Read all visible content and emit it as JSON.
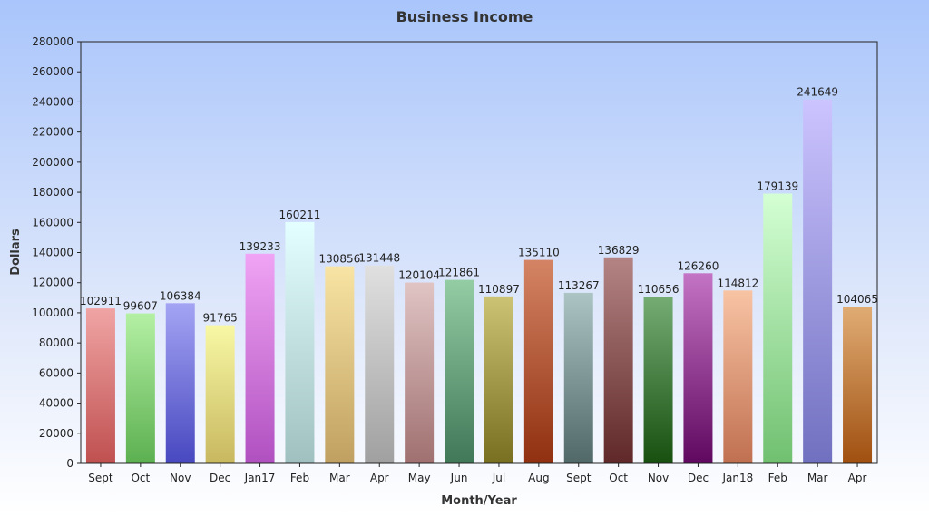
{
  "chart_data": {
    "type": "bar",
    "title": "Business Income",
    "xlabel": "Month/Year",
    "ylabel": "Dollars",
    "ylim": [
      0,
      280000
    ],
    "yticks": [
      0,
      20000,
      40000,
      60000,
      80000,
      100000,
      120000,
      140000,
      160000,
      180000,
      200000,
      220000,
      240000,
      260000,
      280000
    ],
    "grid": false,
    "categories": [
      "Sept",
      "Oct",
      "Nov",
      "Dec",
      "Jan17",
      "Feb",
      "Mar",
      "Apr",
      "May",
      "Jun",
      "Jul",
      "Aug",
      "Sept",
      "Oct",
      "Nov",
      "Dec",
      "Jan18",
      "Feb",
      "Mar",
      "Apr"
    ],
    "values": [
      102911,
      99607,
      106384,
      91765,
      139233,
      160211,
      130856,
      131448,
      120104,
      121861,
      110897,
      135110,
      113267,
      136829,
      110656,
      126260,
      114812,
      179139,
      241649,
      104065
    ],
    "colors": [
      [
        "#f0a4a4",
        "#c05050"
      ],
      [
        "#b4f0a4",
        "#5cb050"
      ],
      [
        "#a4a4f4",
        "#4848c0"
      ],
      [
        "#f8f8a4",
        "#c8b860"
      ],
      [
        "#f0a4f4",
        "#b050c0"
      ],
      [
        "#e4ffff",
        "#a0c0c0"
      ],
      [
        "#f8e4a4",
        "#c0a060"
      ],
      [
        "#e0e0e0",
        "#a0a0a0"
      ],
      [
        "#e0c4c4",
        "#a07070"
      ],
      [
        "#94cca4",
        "#407858"
      ],
      [
        "#ccc474",
        "#787020"
      ],
      [
        "#d48464",
        "#903010"
      ],
      [
        "#acc4c4",
        "#506868"
      ],
      [
        "#b48484",
        "#602828"
      ],
      [
        "#74ac74",
        "#185010"
      ],
      [
        "#c474c4",
        "#600860"
      ],
      [
        "#f8c4a4",
        "#c07050"
      ],
      [
        "#d4ffd4",
        "#70c070"
      ],
      [
        "#ccc4ff",
        "#7070c0"
      ],
      [
        "#e0ac74",
        "#a05010"
      ]
    ]
  }
}
